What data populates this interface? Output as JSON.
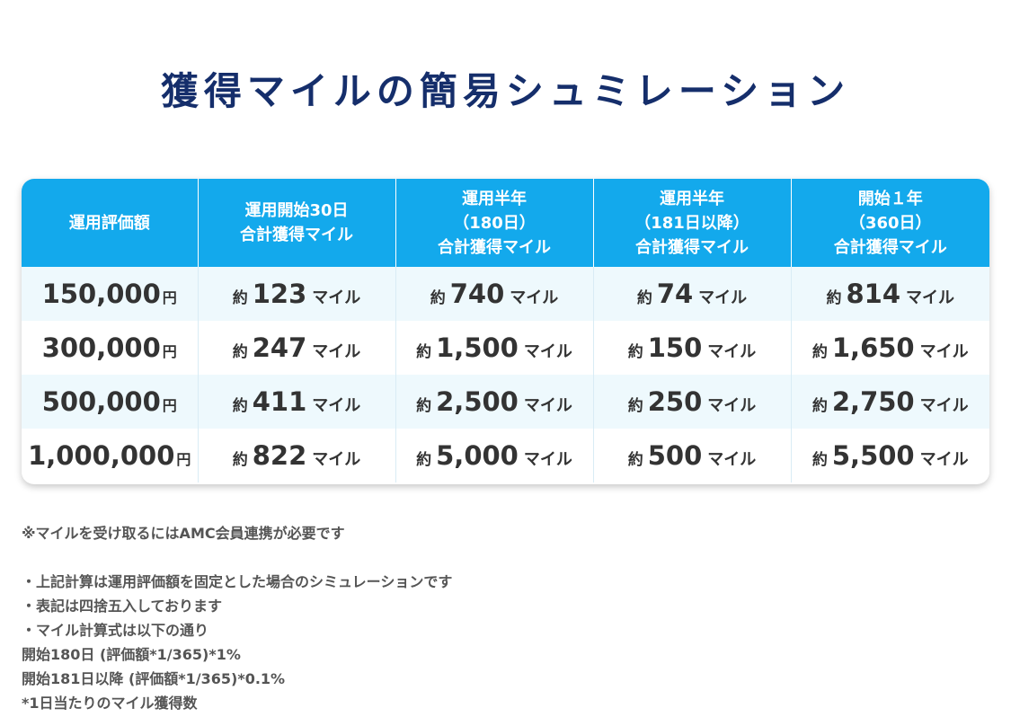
{
  "title": "獲得マイルの簡易シュミレーション",
  "table": {
    "headers": [
      [
        "運用評価額"
      ],
      [
        "運用開始30日",
        "合計獲得マイル"
      ],
      [
        "運用半年",
        "（180日）",
        "合計獲得マイル"
      ],
      [
        "運用半年",
        "（181日以降）",
        "合計獲得マイル"
      ],
      [
        "開始１年",
        "（360日）",
        "合計獲得マイル"
      ]
    ],
    "approx_label": "約",
    "mile_unit": "マイル",
    "yen_unit": "円",
    "rows": [
      {
        "amount": "150,000",
        "values": [
          "123",
          "740",
          "74",
          "814"
        ]
      },
      {
        "amount": "300,000",
        "values": [
          "247",
          "1,500",
          "150",
          "1,650"
        ]
      },
      {
        "amount": "500,000",
        "values": [
          "411",
          "2,500",
          "250",
          "2,750"
        ]
      },
      {
        "amount": "1,000,000",
        "values": [
          "822",
          "5,000",
          "500",
          "5,500"
        ]
      }
    ]
  },
  "notes": {
    "note1": "※マイルを受け取るにはAMC会員連携が必要です",
    "bullet1": "・上記計算は運用評価額を固定とした場合のシミュレーションです",
    "bullet2": "・表記は四捨五入しております",
    "bullet3": "・マイル計算式は以下の通り",
    "formula1": "開始180日 (評価額*1/365)*1%",
    "formula2": "開始181日以降 (評価額*1/365)*0.1%",
    "footnote": "*1日当たりのマイル獲得数"
  },
  "colors": {
    "title": "#152e6b",
    "header_bg": "#13a9ec",
    "row_alt_bg": "#eef9fd",
    "text": "#333333"
  }
}
